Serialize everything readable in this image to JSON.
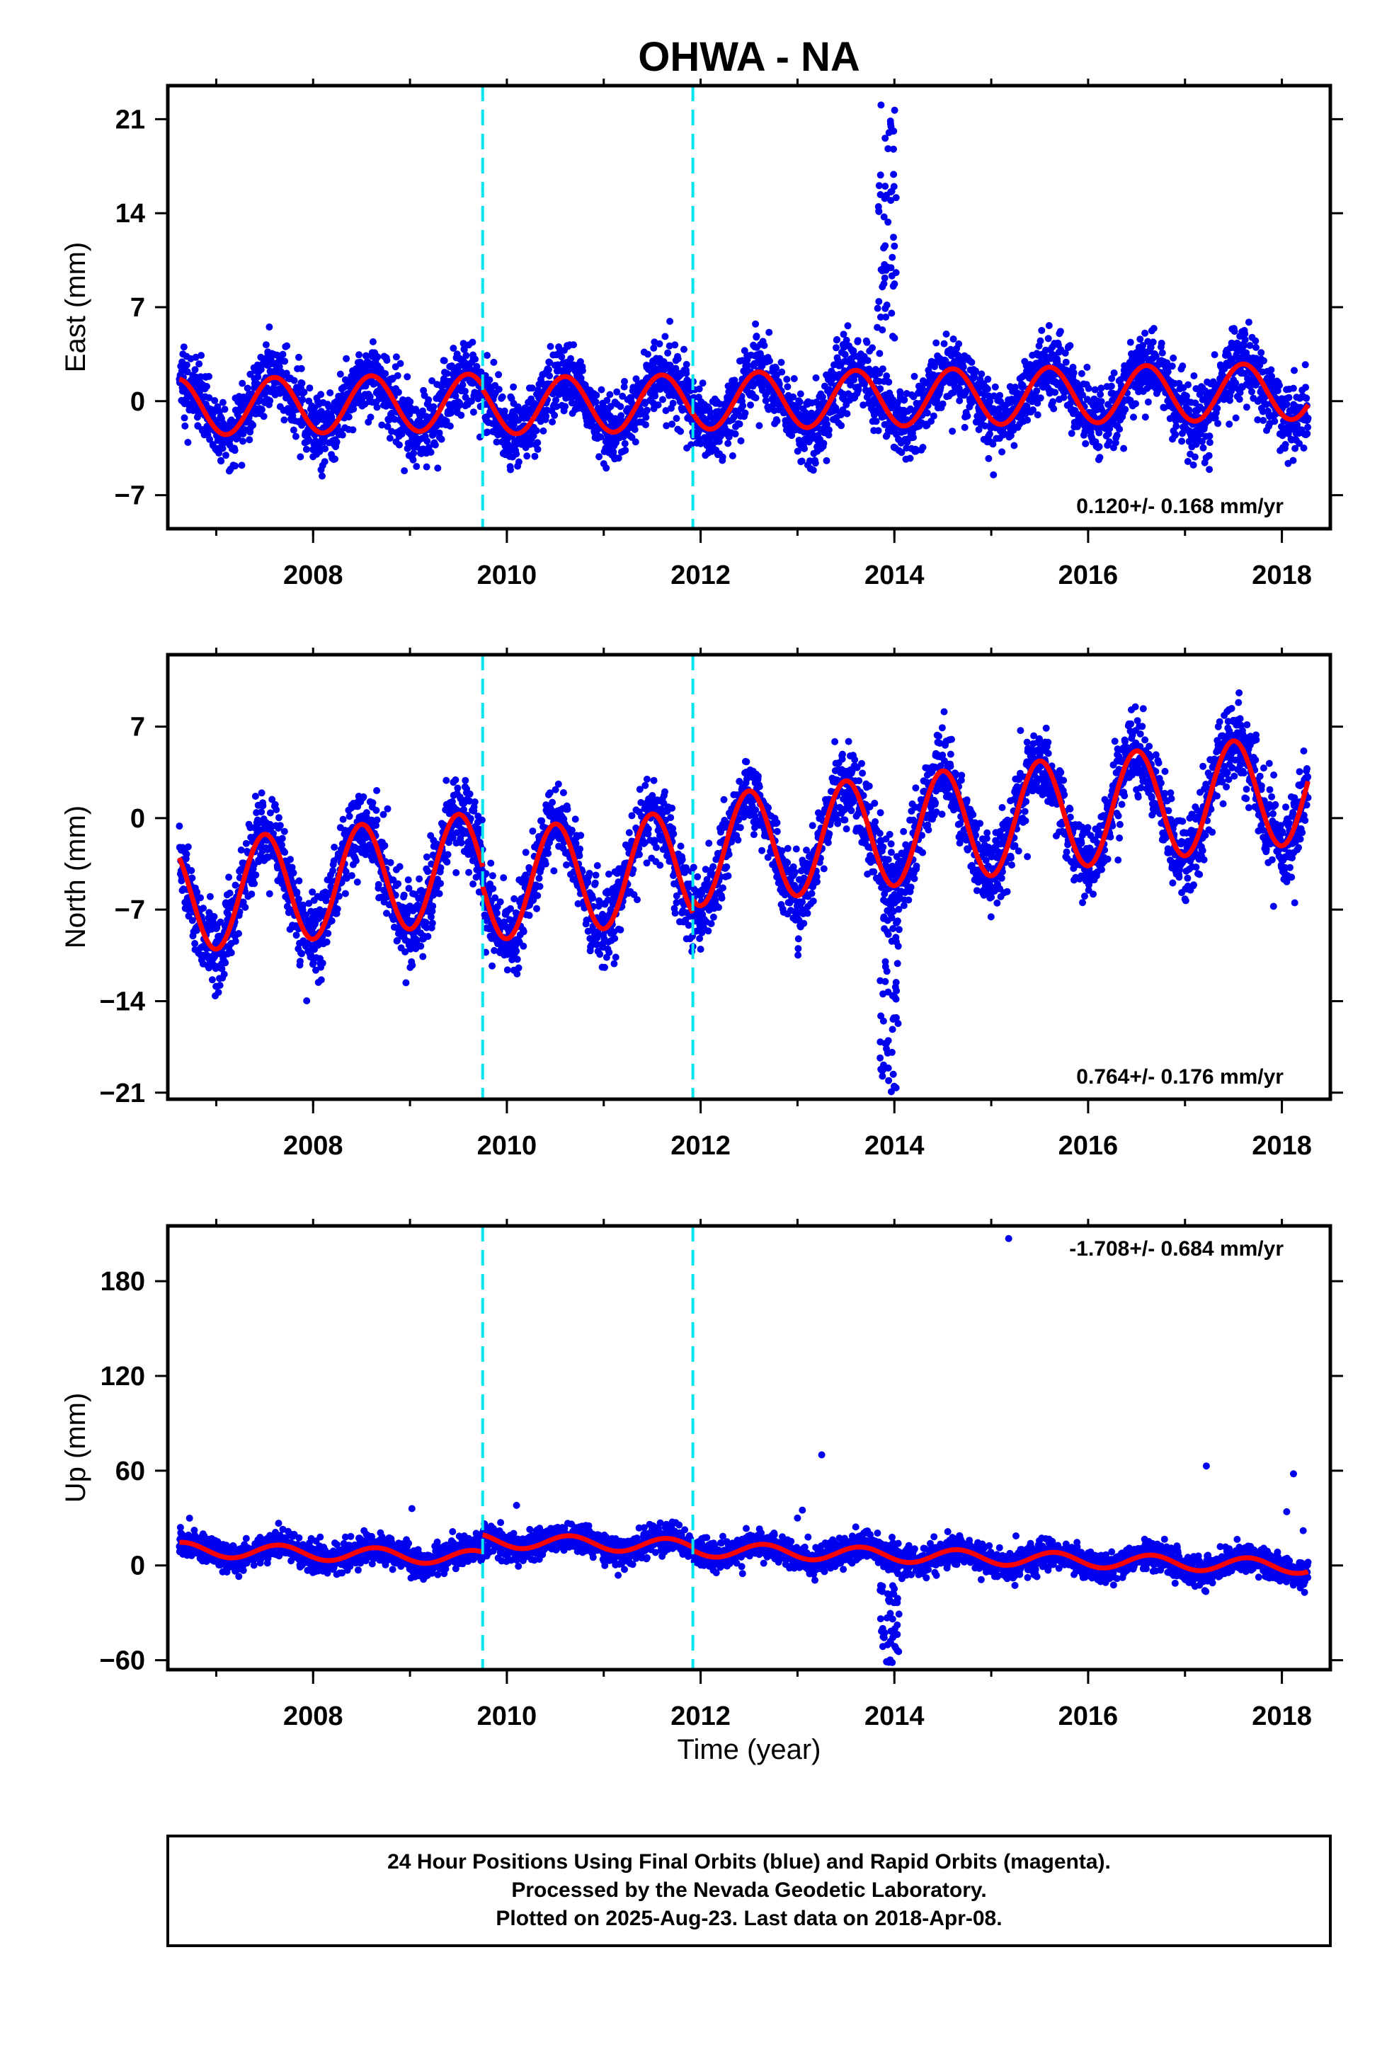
{
  "title": "OHWA - NA",
  "colors": {
    "points": "#0000ee",
    "fit": "#ff0000",
    "offsets": "#00e5ee",
    "frame": "#000000"
  },
  "chart_data": [
    {
      "type": "scatter",
      "ylabel": "East (mm)",
      "xlim": [
        2006.5,
        2018.5
      ],
      "ylim": [
        -9.5,
        23.5
      ],
      "yticks": [
        "21",
        "14",
        "7",
        "0",
        "−7"
      ],
      "xticks": [
        "2008",
        "2010",
        "2012",
        "2014",
        "2016",
        "2018"
      ],
      "rate": "0.120+/- 0.168 mm/yr",
      "offset_lines": [
        2009.75,
        2011.92
      ],
      "data_range": [
        2006.62,
        2018.27
      ],
      "series": [
        {
          "kind": "fit",
          "trend": [
            0.0,
            0.12
          ],
          "amplitude": 2.1,
          "peak_phase": 0.6,
          "segment_offsets": [
            0.2,
            -0.1,
            0.0
          ]
        },
        {
          "kind": "points",
          "noise_sd": 1.3,
          "events": [
            {
              "start": 2013.82,
              "end": 2014.02,
              "min": 4,
              "max": 22.5,
              "count": 55
            }
          ]
        }
      ]
    },
    {
      "type": "scatter",
      "ylabel": "North (mm)",
      "xlim": [
        2006.5,
        2018.5
      ],
      "ylim": [
        -21.5,
        12.5
      ],
      "yticks": [
        "7",
        "0",
        "−7",
        "−14",
        "−21"
      ],
      "xticks": [
        "2008",
        "2010",
        "2012",
        "2014",
        "2016",
        "2018"
      ],
      "rate": "0.764+/- 0.176 mm/yr",
      "offset_lines": [
        2009.75,
        2011.92
      ],
      "data_range": [
        2006.62,
        2018.27
      ],
      "series": [
        {
          "kind": "fit",
          "trend": [
            -2.0,
            0.764
          ],
          "amplitude": 4.2,
          "peak_phase": 0.5,
          "segment_offsets": [
            0.0,
            -1.5,
            -0.5
          ]
        },
        {
          "kind": "points",
          "noise_sd": 1.5,
          "events": [
            {
              "start": 2013.85,
              "end": 2014.05,
              "min": -21,
              "max": -6,
              "count": 55
            }
          ]
        }
      ]
    },
    {
      "type": "scatter",
      "ylabel": "Up (mm)",
      "xlabel": "Time (year)",
      "xlim": [
        2006.5,
        2018.5
      ],
      "ylim": [
        -66,
        215
      ],
      "yticks": [
        "180",
        "120",
        "60",
        "0",
        "−60"
      ],
      "xticks": [
        "2008",
        "2010",
        "2012",
        "2014",
        "2016",
        "2018"
      ],
      "rate": "-1.708+/- 0.684 mm/yr",
      "offset_lines": [
        2009.75,
        2011.92
      ],
      "data_range": [
        2006.62,
        2018.27
      ],
      "series": [
        {
          "kind": "fit",
          "trend": [
            0.0,
            -1.708
          ],
          "amplitude": 4.5,
          "peak_phase": 0.65,
          "segment_offsets": [
            1.0,
            12.0,
            10.0
          ]
        },
        {
          "kind": "points",
          "noise_sd": 4.5,
          "events": [
            {
              "start": 2013.85,
              "end": 2014.05,
              "min": -62,
              "max": -12,
              "count": 45
            }
          ],
          "outliers": [
            [
              2015.18,
              207
            ],
            [
              2013.25,
              70
            ],
            [
              2017.22,
              63
            ],
            [
              2018.12,
              58
            ],
            [
              2009.02,
              36
            ],
            [
              2010.1,
              38
            ],
            [
              2013.05,
              35
            ],
            [
              2018.05,
              34
            ],
            [
              2013.0,
              30
            ],
            [
              2018.22,
              22
            ]
          ]
        }
      ]
    }
  ],
  "caption": [
    "24 Hour Positions Using Final Orbits (blue) and Rapid Orbits (magenta).",
    "Processed by the Nevada Geodetic Laboratory.",
    "Plotted on 2025-Aug-23. Last data on 2018-Apr-08."
  ]
}
